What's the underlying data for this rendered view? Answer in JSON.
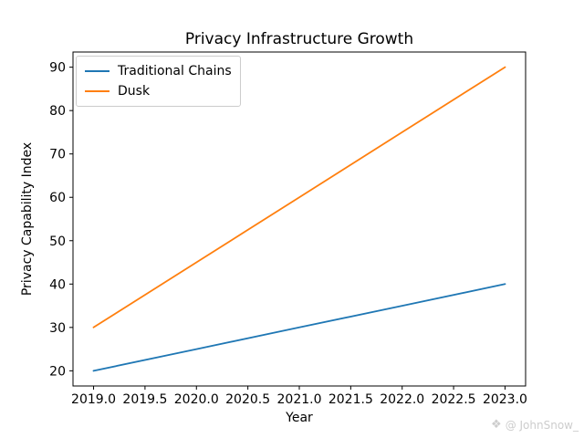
{
  "chart_data": {
    "type": "line",
    "title": "Privacy Infrastructure Growth",
    "xlabel": "Year",
    "ylabel": "Privacy Capability Index",
    "x": [
      2019,
      2020,
      2021,
      2022,
      2023
    ],
    "series": [
      {
        "name": "Traditional Chains",
        "color": "#1f77b4",
        "values": [
          20,
          25,
          30,
          35,
          40
        ]
      },
      {
        "name": "Dusk",
        "color": "#ff7f0e",
        "values": [
          30,
          45,
          60,
          75,
          90
        ]
      }
    ],
    "xlim": [
      2018.8,
      2023.2
    ],
    "ylim": [
      16.5,
      93.5
    ],
    "xticks": [
      2019.0,
      2019.5,
      2020.0,
      2020.5,
      2021.0,
      2021.5,
      2022.0,
      2022.5,
      2023.0
    ],
    "xtick_labels": [
      "2019.0",
      "2019.5",
      "2020.0",
      "2020.5",
      "2021.0",
      "2021.5",
      "2022.0",
      "2022.5",
      "2023.0"
    ],
    "yticks": [
      20,
      30,
      40,
      50,
      60,
      70,
      80,
      90
    ],
    "ytick_labels": [
      "20",
      "30",
      "40",
      "50",
      "60",
      "70",
      "80",
      "90"
    ],
    "grid": false,
    "legend_position": "upper left",
    "frame_color": "#000000",
    "tick_label_color": "#000000"
  },
  "watermark": {
    "icon": "diamond-logo",
    "text": "@ JohnSnow_",
    "icon_glyph": "❖",
    "color": "#cdcdcd"
  }
}
